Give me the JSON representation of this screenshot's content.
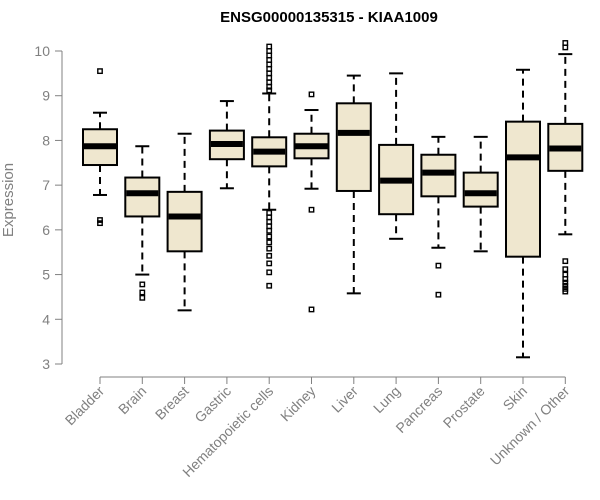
{
  "chart_data": {
    "type": "boxplot",
    "title": "ENSG00000135315 - KIAA1009",
    "ylabel": "Expression",
    "xlabel": "",
    "ylim": [
      3,
      10
    ],
    "yticks": [
      "3",
      "4",
      "5",
      "6",
      "7",
      "8",
      "9",
      "10"
    ],
    "categories": [
      "Bladder",
      "Brain",
      "Breast",
      "Gastric",
      "Hematopoietic cells",
      "Kidney",
      "Liver",
      "Lung",
      "Pancreas",
      "Prostate",
      "Skin",
      "Unknown / Other"
    ],
    "boxes": [
      {
        "whisker_low": 6.78,
        "q1": 7.45,
        "median": 7.87,
        "q3": 8.25,
        "whisker_high": 8.62,
        "outliers": [
          9.55,
          6.22,
          6.15
        ]
      },
      {
        "whisker_low": 5.0,
        "q1": 6.3,
        "median": 6.82,
        "q3": 7.17,
        "whisker_high": 7.87,
        "outliers": [
          4.78,
          4.6,
          4.48
        ]
      },
      {
        "whisker_low": 4.2,
        "q1": 5.52,
        "median": 6.3,
        "q3": 6.85,
        "whisker_high": 8.15,
        "outliers": []
      },
      {
        "whisker_low": 6.93,
        "q1": 7.58,
        "median": 7.92,
        "q3": 8.22,
        "whisker_high": 8.88,
        "outliers": []
      },
      {
        "whisker_low": 6.45,
        "q1": 7.42,
        "median": 7.75,
        "q3": 8.07,
        "whisker_high": 9.05,
        "outliers": [
          10.1,
          10.0,
          9.9,
          9.8,
          9.7,
          9.6,
          9.5,
          9.4,
          9.3,
          9.2,
          9.12,
          6.38,
          6.28,
          6.18,
          6.08,
          5.98,
          5.85,
          5.72,
          5.58,
          5.42,
          5.25,
          5.05,
          4.75
        ]
      },
      {
        "whisker_low": 6.92,
        "q1": 7.6,
        "median": 7.87,
        "q3": 8.15,
        "whisker_high": 8.68,
        "outliers": [
          9.03,
          6.45,
          4.22
        ]
      },
      {
        "whisker_low": 4.58,
        "q1": 6.87,
        "median": 8.17,
        "q3": 8.83,
        "whisker_high": 9.45,
        "outliers": []
      },
      {
        "whisker_low": 5.8,
        "q1": 6.35,
        "median": 7.1,
        "q3": 7.9,
        "whisker_high": 9.5,
        "outliers": []
      },
      {
        "whisker_low": 5.6,
        "q1": 6.75,
        "median": 7.28,
        "q3": 7.68,
        "whisker_high": 8.08,
        "outliers": [
          5.2,
          4.55
        ]
      },
      {
        "whisker_low": 5.52,
        "q1": 6.52,
        "median": 6.82,
        "q3": 7.28,
        "whisker_high": 8.08,
        "outliers": []
      },
      {
        "whisker_low": 3.15,
        "q1": 5.4,
        "median": 7.62,
        "q3": 8.42,
        "whisker_high": 9.58,
        "outliers": []
      },
      {
        "whisker_low": 5.9,
        "q1": 7.32,
        "median": 7.82,
        "q3": 8.37,
        "whisker_high": 9.93,
        "outliers": [
          10.18,
          10.08,
          5.3,
          5.12,
          5.0,
          4.9,
          4.82,
          4.75,
          4.68,
          4.62
        ]
      }
    ],
    "box_fill": "#efe7cf",
    "box_stroke": "#000000",
    "grid": false,
    "legend": "none"
  }
}
